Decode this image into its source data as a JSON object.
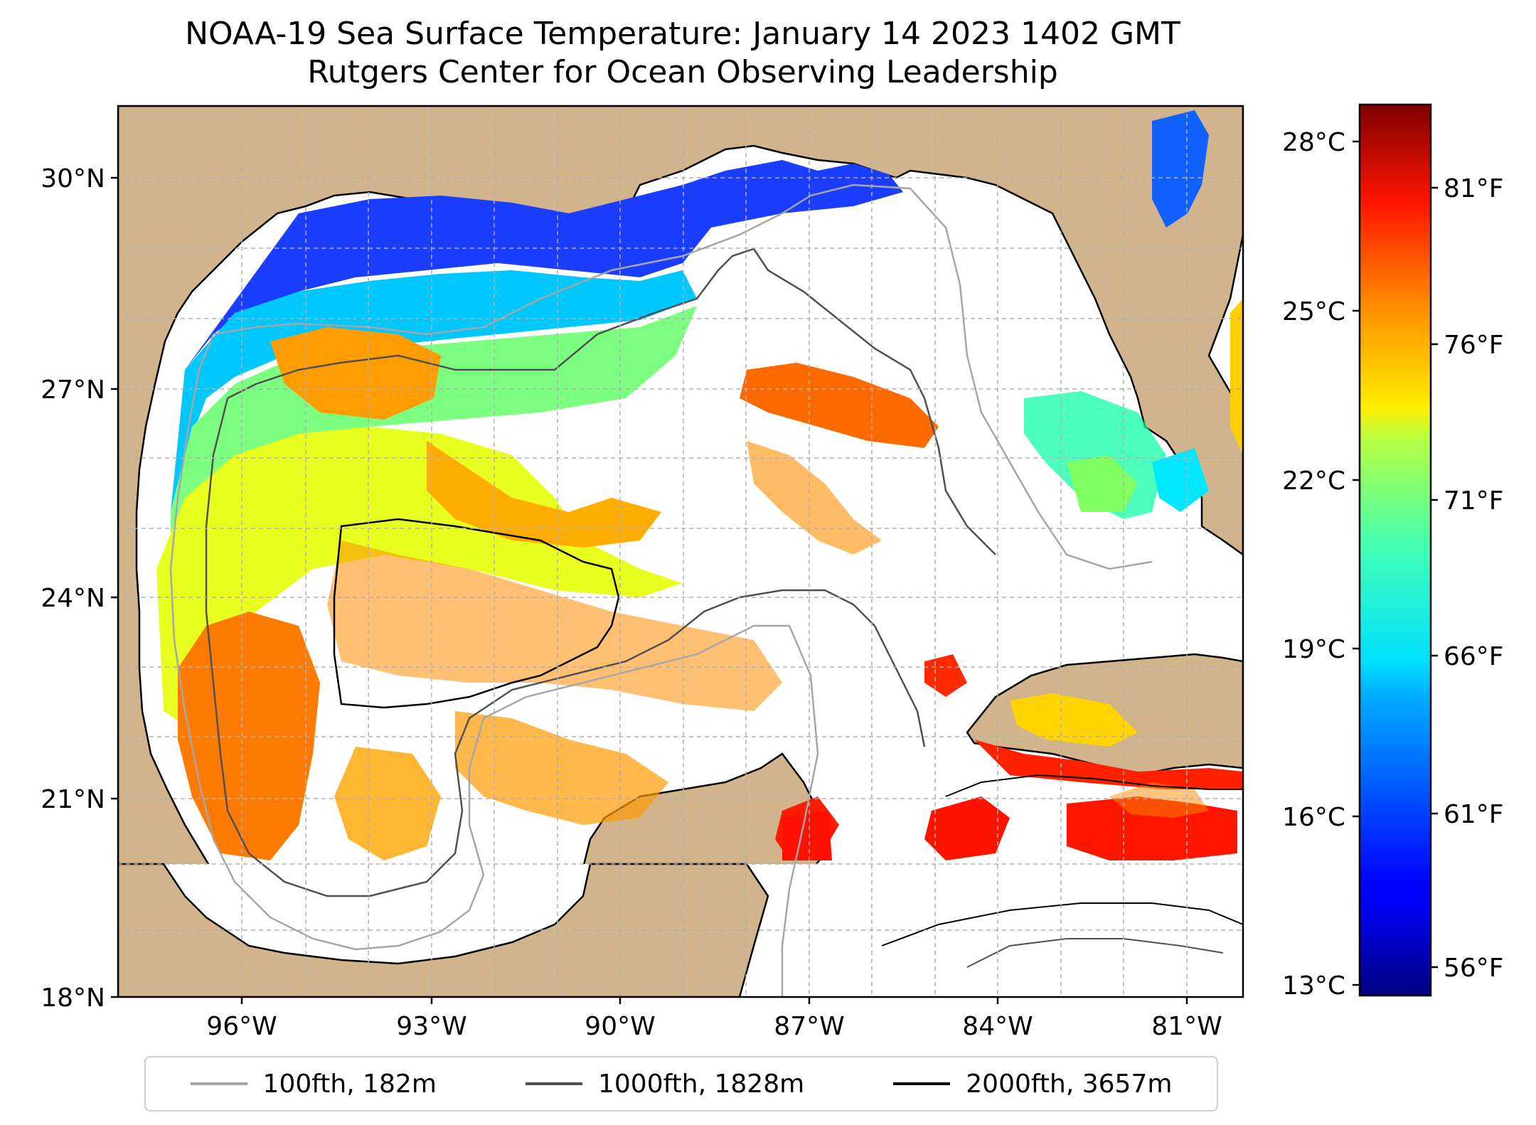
{
  "title_line1": "NOAA-19 Sea Surface Temperature: January 14 2023 1402 GMT",
  "title_line2": "Rutgers Center for Ocean Observing Leadership",
  "map": {
    "lat_labels": [
      "30°N",
      "27°N",
      "24°N",
      "21°N",
      "18°N"
    ],
    "lon_labels": [
      "96°W",
      "93°W",
      "90°W",
      "87°W",
      "84°W",
      "81°W"
    ],
    "colors": {
      "land": "#d2b48c",
      "gridline": "#b0b0b0",
      "coastline": "#000000"
    }
  },
  "colorbar": {
    "celsius_labels": [
      "28°C",
      "25°C",
      "22°C",
      "19°C",
      "16°C",
      "13°C"
    ],
    "fahrenheit_labels": [
      "81°F",
      "76°F",
      "71°F",
      "66°F",
      "61°F",
      "56°F"
    ],
    "colormap": "jet"
  },
  "legend": [
    {
      "label": "100fth, 182m",
      "color": "#a6a6a6"
    },
    {
      "label": "1000fth, 1828m",
      "color": "#505050"
    },
    {
      "label": "2000fth, 3657m",
      "color": "#000000"
    }
  ]
}
